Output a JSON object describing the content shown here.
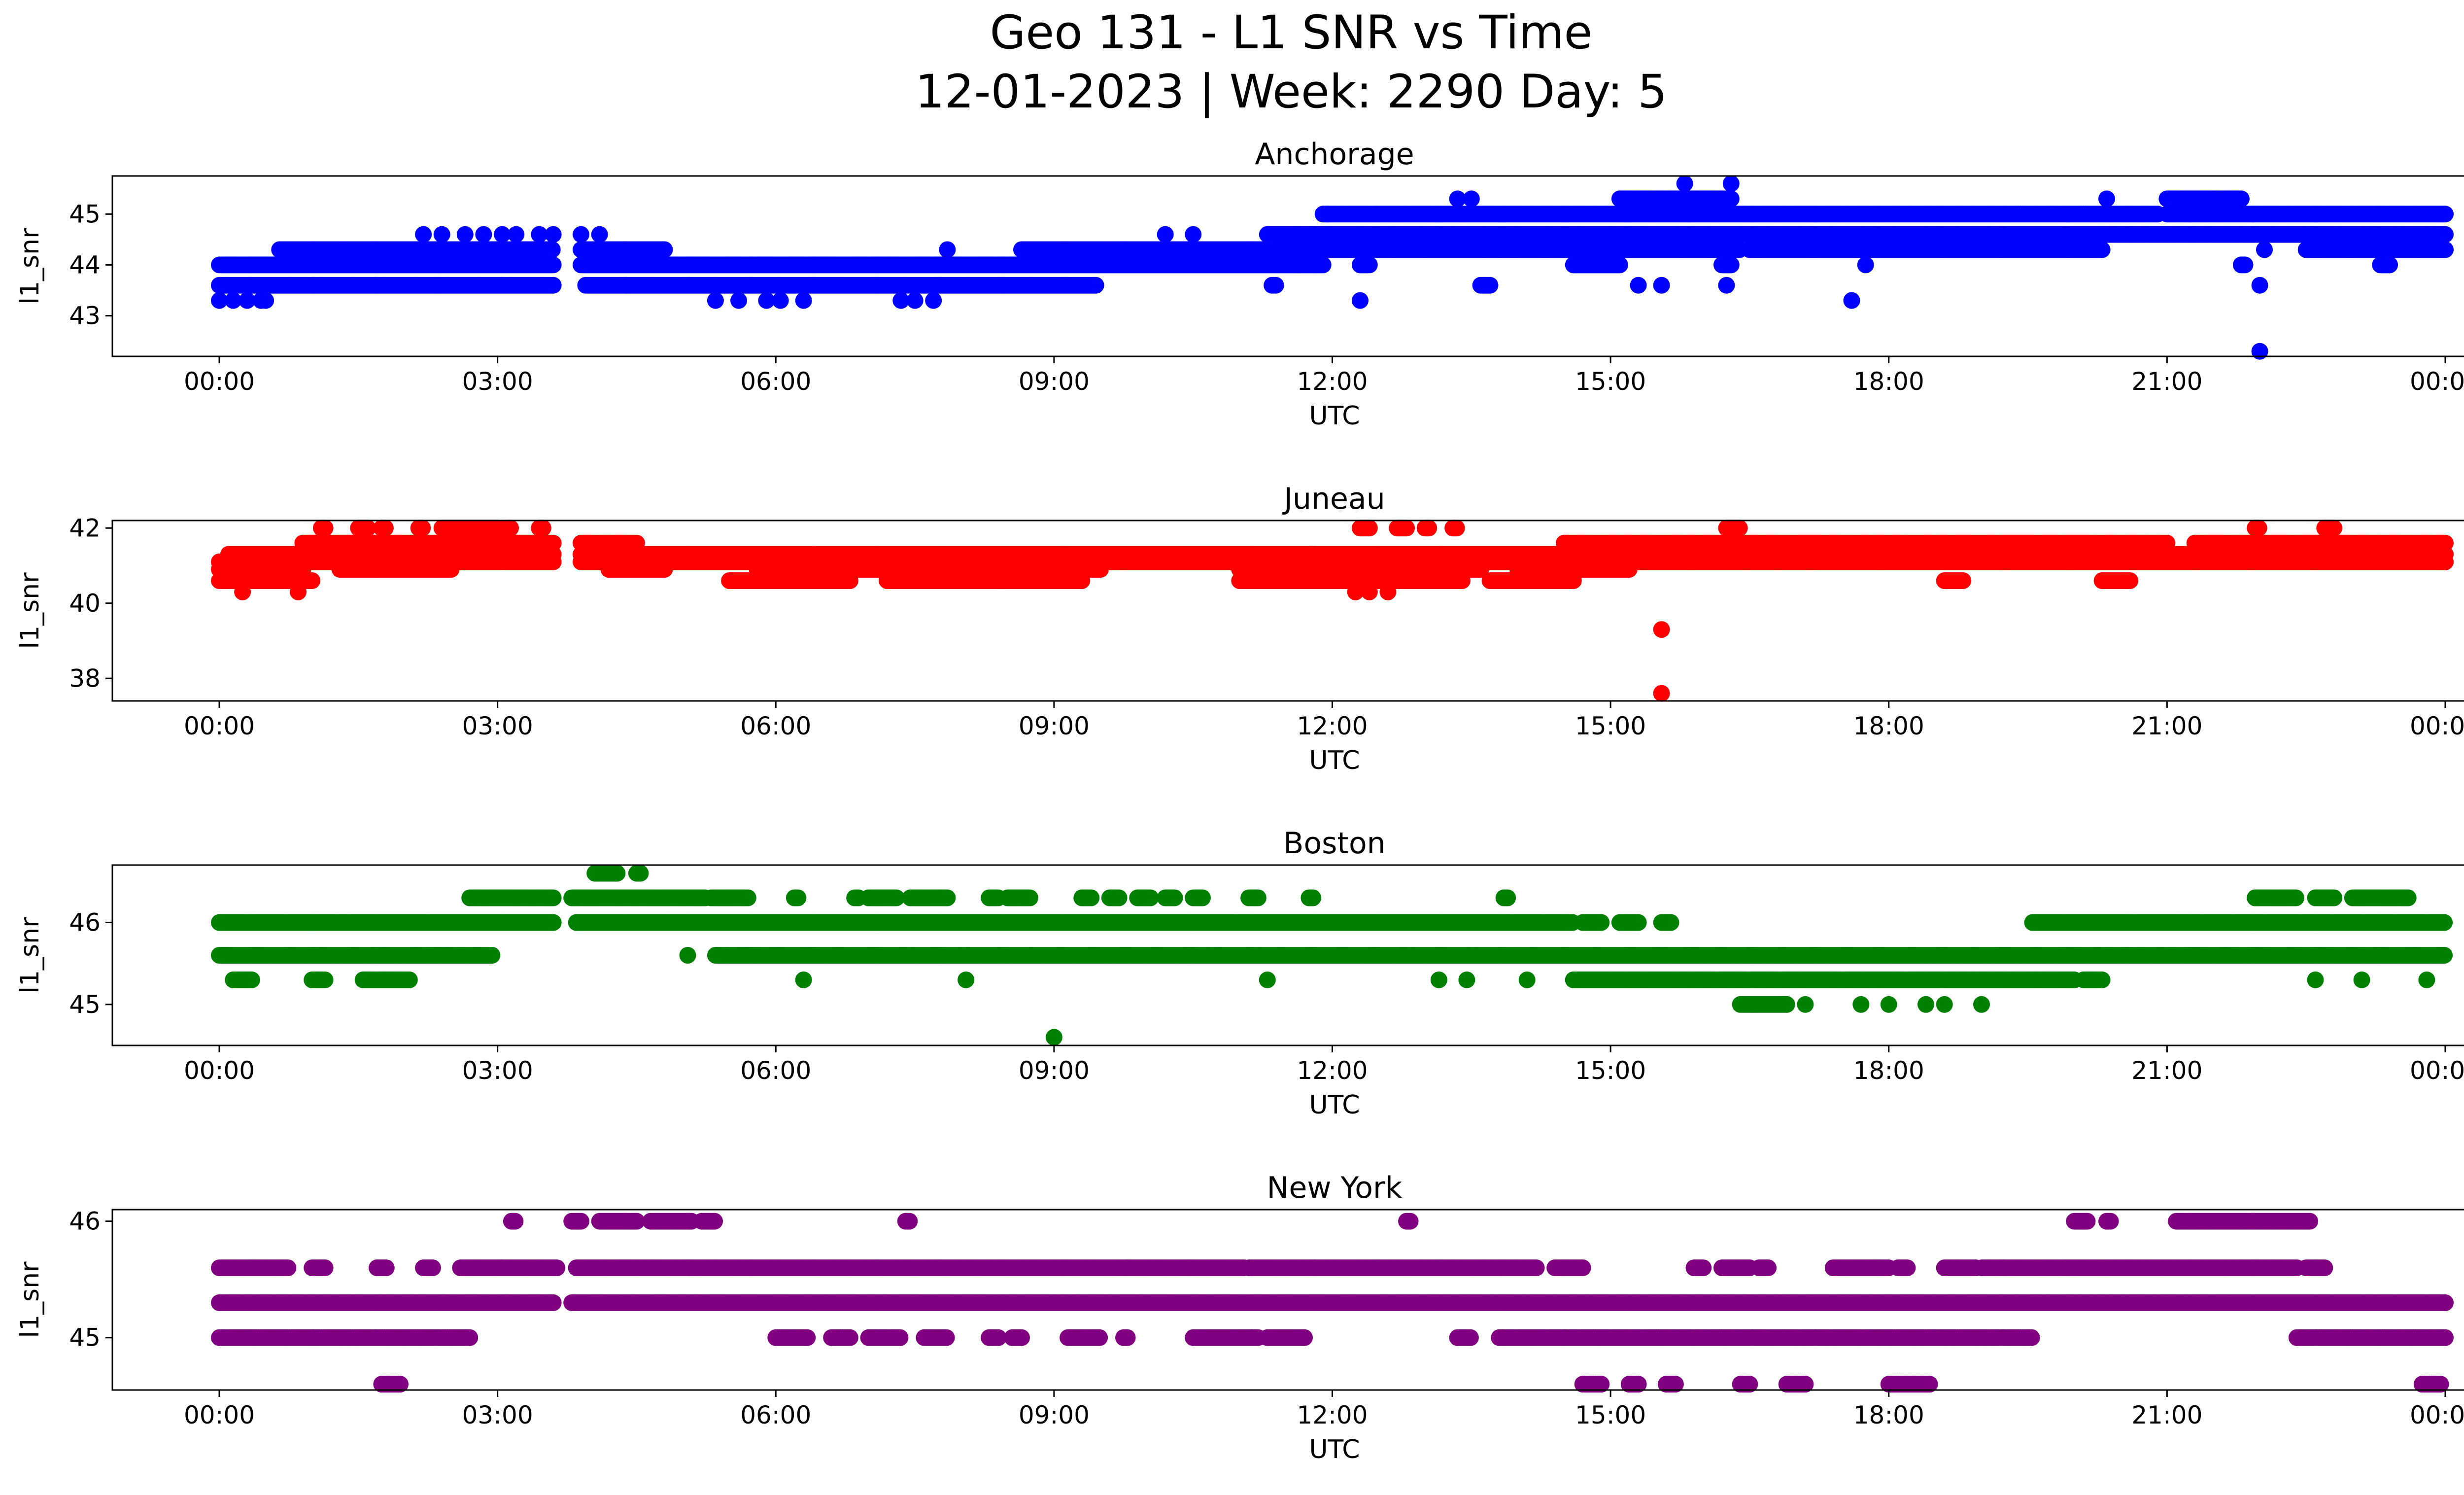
{
  "title_line1": "Geo 131 - L1 SNR vs Time",
  "title_line2": "12-01-2023 | Week: 2290 Day: 5",
  "chart_data": [
    {
      "type": "scatter",
      "title": "Anchorage",
      "xlabel": "UTC",
      "ylabel": "l1_snr",
      "color": "#0000ff",
      "x_ticks": [
        "00:00",
        "03:00",
        "06:00",
        "09:00",
        "12:00",
        "15:00",
        "18:00",
        "21:00",
        "00:00"
      ],
      "y_ticks": [
        43,
        44,
        45
      ],
      "ylim": [
        42.2,
        45.75
      ],
      "bands": [
        {
          "y": 43.6,
          "segments": [
            [
              0.0,
              3.6
            ],
            [
              3.95,
              9.45
            ],
            [
              11.35,
              11.4
            ],
            [
              13.6,
              13.7
            ]
          ]
        },
        {
          "y": 44.0,
          "segments": [
            [
              0.0,
              3.6
            ],
            [
              3.9,
              11.9
            ],
            [
              12.3,
              12.4
            ],
            [
              14.6,
              15.1
            ],
            [
              16.2,
              16.3
            ],
            [
              21.8,
              21.85
            ],
            [
              23.3,
              23.4
            ]
          ]
        },
        {
          "y": 44.3,
          "segments": [
            [
              0.65,
              3.6
            ],
            [
              3.9,
              4.8
            ],
            [
              8.65,
              16.4
            ],
            [
              16.5,
              20.3
            ],
            [
              22.5,
              24.0
            ]
          ]
        },
        {
          "y": 44.6,
          "segments": [
            [
              11.3,
              24.0
            ]
          ]
        },
        {
          "y": 45.0,
          "segments": [
            [
              11.9,
              20.9
            ],
            [
              21.0,
              24.0
            ]
          ]
        },
        {
          "y": 45.3,
          "segments": [
            [
              15.1,
              16.3
            ],
            [
              21.0,
              21.8
            ]
          ]
        }
      ],
      "points": [
        [
          0.0,
          43.3
        ],
        [
          0.15,
          43.3
        ],
        [
          0.3,
          43.3
        ],
        [
          0.45,
          43.3
        ],
        [
          0.5,
          43.3
        ],
        [
          5.35,
          43.3
        ],
        [
          5.6,
          43.3
        ],
        [
          5.9,
          43.3
        ],
        [
          6.05,
          43.3
        ],
        [
          6.3,
          43.3
        ],
        [
          7.35,
          43.3
        ],
        [
          7.5,
          43.3
        ],
        [
          7.7,
          43.3
        ],
        [
          2.2,
          44.6
        ],
        [
          2.4,
          44.6
        ],
        [
          2.65,
          44.6
        ],
        [
          2.85,
          44.6
        ],
        [
          3.05,
          44.6
        ],
        [
          3.2,
          44.6
        ],
        [
          3.45,
          44.6
        ],
        [
          3.6,
          44.6
        ],
        [
          3.9,
          44.6
        ],
        [
          4.1,
          44.6
        ],
        [
          7.85,
          44.3
        ],
        [
          10.5,
          44.6
        ],
        [
          10.2,
          44.6
        ],
        [
          11.65,
          44.0
        ],
        [
          11.95,
          45.0
        ],
        [
          12.3,
          43.3
        ],
        [
          13.35,
          45.3
        ],
        [
          13.5,
          45.3
        ],
        [
          15.3,
          43.6
        ],
        [
          15.55,
          43.6
        ],
        [
          16.25,
          43.6
        ],
        [
          15.8,
          45.6
        ],
        [
          16.3,
          45.6
        ],
        [
          17.6,
          43.3
        ],
        [
          17.75,
          44.0
        ],
        [
          20.35,
          45.3
        ],
        [
          22.0,
          43.6
        ],
        [
          22.05,
          44.3
        ],
        [
          22.0,
          42.3
        ]
      ]
    },
    {
      "type": "scatter",
      "title": "Juneau",
      "xlabel": "UTC",
      "ylabel": "l1_snr",
      "color": "#ff0000",
      "x_ticks": [
        "00:00",
        "03:00",
        "06:00",
        "09:00",
        "12:00",
        "15:00",
        "18:00",
        "21:00",
        "00:00"
      ],
      "y_ticks": [
        38,
        40,
        42
      ],
      "ylim": [
        37.4,
        42.2
      ],
      "bands": [
        {
          "y": 40.6,
          "segments": [
            [
              0.0,
              1.0
            ],
            [
              5.5,
              6.8
            ],
            [
              7.2,
              9.3
            ],
            [
              11.0,
              13.4
            ],
            [
              13.7,
              14.6
            ],
            [
              18.6,
              18.8
            ],
            [
              20.3,
              20.6
            ]
          ]
        },
        {
          "y": 40.9,
          "segments": [
            [
              0.0,
              0.9
            ],
            [
              1.3,
              2.5
            ],
            [
              4.2,
              4.8
            ],
            [
              5.8,
              9.5
            ],
            [
              11.0,
              13.6
            ],
            [
              14.0,
              15.2
            ]
          ]
        },
        {
          "y": 41.1,
          "segments": [
            [
              0.0,
              3.6
            ],
            [
              3.9,
              24.0
            ]
          ]
        },
        {
          "y": 41.3,
          "segments": [
            [
              0.1,
              3.6
            ],
            [
              3.9,
              24.0
            ]
          ]
        },
        {
          "y": 41.6,
          "segments": [
            [
              0.9,
              3.6
            ],
            [
              3.9,
              4.5
            ],
            [
              14.5,
              21.0
            ],
            [
              21.3,
              24.0
            ]
          ]
        },
        {
          "y": 42.0,
          "segments": [
            [
              1.1,
              1.15
            ],
            [
              1.5,
              1.6
            ],
            [
              1.75,
              1.8
            ],
            [
              2.15,
              2.2
            ],
            [
              2.4,
              3.0
            ],
            [
              3.1,
              3.15
            ],
            [
              3.45,
              3.5
            ],
            [
              12.3,
              12.4
            ],
            [
              12.7,
              12.8
            ],
            [
              13.0,
              13.05
            ],
            [
              13.3,
              13.35
            ],
            [
              16.25,
              16.4
            ],
            [
              21.95,
              22.0
            ],
            [
              22.7,
              22.8
            ]
          ]
        }
      ],
      "points": [
        [
          0.25,
          40.3
        ],
        [
          0.85,
          40.3
        ],
        [
          12.25,
          40.3
        ],
        [
          12.4,
          40.3
        ],
        [
          12.6,
          40.3
        ],
        [
          15.55,
          39.3
        ],
        [
          15.55,
          37.6
        ]
      ]
    },
    {
      "type": "scatter",
      "title": "Boston",
      "xlabel": "UTC",
      "ylabel": "l1_snr",
      "color": "#008000",
      "x_ticks": [
        "00:00",
        "03:00",
        "06:00",
        "09:00",
        "12:00",
        "15:00",
        "18:00",
        "21:00",
        "00:00"
      ],
      "y_ticks": [
        45,
        46
      ],
      "ylim": [
        44.5,
        46.7
      ],
      "bands": [
        {
          "y": 45.0,
          "segments": [
            [
              16.4,
              16.9
            ]
          ]
        },
        {
          "y": 45.3,
          "segments": [
            [
              0.15,
              0.35
            ],
            [
              1.0,
              1.15
            ],
            [
              1.55,
              2.05
            ],
            [
              14.6,
              20.0
            ],
            [
              20.1,
              20.3
            ]
          ]
        },
        {
          "y": 45.6,
          "segments": [
            [
              0.0,
              2.95
            ],
            [
              5.35,
              24.0
            ]
          ]
        },
        {
          "y": 46.0,
          "segments": [
            [
              0.0,
              3.6
            ],
            [
              3.85,
              14.6
            ],
            [
              14.7,
              14.9
            ],
            [
              15.1,
              15.3
            ],
            [
              15.55,
              15.65
            ],
            [
              19.55,
              24.0
            ]
          ]
        },
        {
          "y": 46.3,
          "segments": [
            [
              2.7,
              3.6
            ],
            [
              3.8,
              5.25
            ],
            [
              5.3,
              5.7
            ],
            [
              6.2,
              6.25
            ],
            [
              6.85,
              6.9
            ],
            [
              7.0,
              7.3
            ],
            [
              7.45,
              7.85
            ],
            [
              8.3,
              8.4
            ],
            [
              8.5,
              8.75
            ],
            [
              9.3,
              9.4
            ],
            [
              9.6,
              9.7
            ],
            [
              9.9,
              10.05
            ],
            [
              10.2,
              10.3
            ],
            [
              10.5,
              10.6
            ],
            [
              11.1,
              11.2
            ],
            [
              11.75,
              11.8
            ],
            [
              13.85,
              13.9
            ],
            [
              21.95,
              22.4
            ],
            [
              22.6,
              22.8
            ],
            [
              23.0,
              23.6
            ]
          ]
        },
        {
          "y": 46.6,
          "segments": [
            [
              4.05,
              4.3
            ],
            [
              4.5,
              4.55
            ]
          ]
        }
      ],
      "points": [
        [
          5.05,
          45.6
        ],
        [
          6.3,
          45.3
        ],
        [
          8.05,
          45.3
        ],
        [
          11.3,
          45.3
        ],
        [
          13.15,
          45.3
        ],
        [
          13.45,
          45.3
        ],
        [
          14.1,
          45.3
        ],
        [
          17.1,
          45.0
        ],
        [
          17.7,
          45.0
        ],
        [
          18.0,
          45.0
        ],
        [
          18.4,
          45.0
        ],
        [
          18.6,
          45.0
        ],
        [
          19.0,
          45.0
        ],
        [
          22.6,
          45.3
        ],
        [
          23.1,
          45.3
        ],
        [
          23.8,
          45.3
        ],
        [
          9.0,
          44.6
        ]
      ]
    },
    {
      "type": "scatter",
      "title": "New York",
      "xlabel": "UTC",
      "ylabel": "l1_snr",
      "color": "#800080",
      "x_ticks": [
        "00:00",
        "03:00",
        "06:00",
        "09:00",
        "12:00",
        "15:00",
        "18:00",
        "21:00",
        "00:00"
      ],
      "y_ticks": [
        45,
        46
      ],
      "ylim": [
        44.55,
        46.1
      ],
      "bands": [
        {
          "y": 44.6,
          "segments": [
            [
              1.75,
              1.95
            ],
            [
              14.7,
              14.9
            ],
            [
              15.2,
              15.3
            ],
            [
              15.6,
              15.7
            ],
            [
              16.4,
              16.5
            ],
            [
              16.9,
              17.1
            ],
            [
              18.0,
              18.45
            ],
            [
              23.75,
              23.95
            ]
          ]
        },
        {
          "y": 45.0,
          "segments": [
            [
              0.0,
              2.7
            ],
            [
              6.0,
              6.35
            ],
            [
              6.6,
              6.8
            ],
            [
              7.0,
              7.35
            ],
            [
              7.6,
              7.85
            ],
            [
              8.3,
              8.4
            ],
            [
              8.55,
              8.65
            ],
            [
              9.15,
              9.5
            ],
            [
              9.75,
              9.8
            ],
            [
              10.5,
              11.2
            ],
            [
              11.3,
              11.7
            ],
            [
              13.35,
              13.5
            ],
            [
              13.8,
              19.55
            ],
            [
              22.4,
              24.0
            ]
          ]
        },
        {
          "y": 45.3,
          "segments": [
            [
              0.0,
              3.6
            ],
            [
              3.8,
              24.0
            ]
          ]
        },
        {
          "y": 45.6,
          "segments": [
            [
              0.0,
              0.75
            ],
            [
              1.0,
              1.15
            ],
            [
              1.7,
              1.8
            ],
            [
              2.2,
              2.3
            ],
            [
              2.6,
              3.65
            ],
            [
              3.85,
              11.05
            ],
            [
              11.1,
              14.2
            ],
            [
              14.4,
              14.7
            ],
            [
              15.9,
              16.0
            ],
            [
              16.2,
              16.5
            ],
            [
              16.6,
              16.7
            ],
            [
              17.4,
              18.0
            ],
            [
              18.1,
              18.2
            ],
            [
              18.6,
              18.95
            ],
            [
              19.0,
              22.4
            ],
            [
              22.5,
              22.7
            ]
          ]
        },
        {
          "y": 46.0,
          "segments": [
            [
              3.15,
              3.2
            ],
            [
              3.8,
              3.9
            ],
            [
              4.1,
              4.5
            ],
            [
              4.65,
              5.1
            ],
            [
              5.2,
              5.35
            ],
            [
              7.4,
              7.45
            ],
            [
              12.8,
              12.85
            ],
            [
              20.0,
              20.15
            ],
            [
              20.35,
              20.4
            ],
            [
              21.1,
              22.55
            ]
          ]
        }
      ],
      "points": []
    }
  ]
}
